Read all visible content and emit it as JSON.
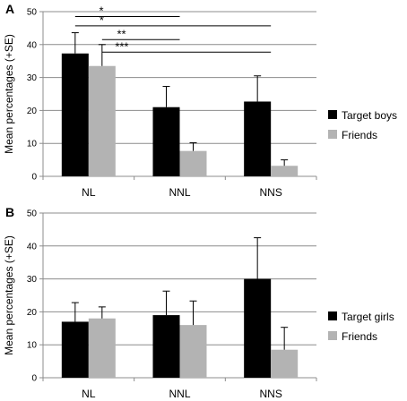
{
  "colors": {
    "series1": "#000000",
    "series2": "#b3b3b3",
    "grid": "#8c8c8c",
    "errorbar": "#000000"
  },
  "chart_data": [
    {
      "panel_label": "A",
      "type": "bar",
      "categories": [
        "NL",
        "NNL",
        "NNS"
      ],
      "ylabel": "Mean percentages (+SE)",
      "ylim": [
        0,
        50
      ],
      "yticks": [
        0,
        10,
        20,
        30,
        40,
        50
      ],
      "grid": true,
      "legend_position": "right",
      "series": [
        {
          "name": "Target boys",
          "values": [
            37.3,
            21,
            22.7
          ],
          "errors": [
            6.3,
            6.3,
            7.8
          ]
        },
        {
          "name": "Friends",
          "values": [
            33.5,
            7.7,
            3.2
          ],
          "errors": [
            6.5,
            2.5,
            1.8
          ]
        }
      ],
      "significance": [
        {
          "label": "*",
          "level": 48.5
        },
        {
          "label": "*",
          "level": 45.7
        },
        {
          "label": "**",
          "level": 41.5
        },
        {
          "label": "***",
          "level": 37.7
        }
      ]
    },
    {
      "panel_label": "B",
      "type": "bar",
      "categories": [
        "NL",
        "NNL",
        "NNS"
      ],
      "ylabel": "Mean percentages (+SE)",
      "ylim": [
        0,
        50
      ],
      "yticks": [
        0,
        10,
        20,
        30,
        40,
        50
      ],
      "grid": true,
      "legend_position": "right",
      "series": [
        {
          "name": "Target girls",
          "values": [
            17,
            19,
            30
          ],
          "errors": [
            5.8,
            7.3,
            12.5
          ]
        },
        {
          "name": "Friends",
          "values": [
            18,
            16,
            8.5
          ],
          "errors": [
            3.5,
            7.3,
            6.8
          ]
        }
      ]
    }
  ]
}
